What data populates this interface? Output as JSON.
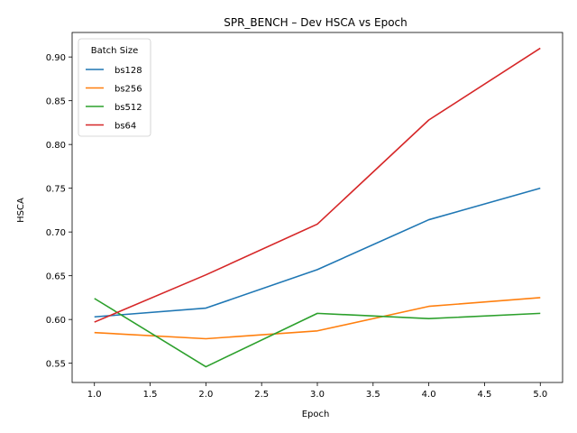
{
  "chart_data": {
    "type": "line",
    "title": "SPR_BENCH – Dev HSCA vs Epoch",
    "xlabel": "Epoch",
    "ylabel": "HSCA",
    "x": [
      1,
      2,
      3,
      4,
      5
    ],
    "xlim": [
      0.8,
      5.2
    ],
    "ylim": [
      0.528,
      0.928
    ],
    "xticks": [
      "1.0",
      "1.5",
      "2.0",
      "2.5",
      "3.0",
      "3.5",
      "4.0",
      "4.5",
      "5.0"
    ],
    "yticks": [
      "0.55",
      "0.60",
      "0.65",
      "0.70",
      "0.75",
      "0.80",
      "0.85",
      "0.90"
    ],
    "grid": false,
    "legend": {
      "title": "Batch Size",
      "placement": "top-left"
    },
    "series": [
      {
        "name": "bs128",
        "color": "#1f77b4",
        "values": [
          0.603,
          0.613,
          0.657,
          0.714,
          0.75
        ]
      },
      {
        "name": "bs256",
        "color": "#ff7f0e",
        "values": [
          0.585,
          0.578,
          0.587,
          0.615,
          0.625
        ]
      },
      {
        "name": "bs512",
        "color": "#2ca02c",
        "values": [
          0.624,
          0.546,
          0.607,
          0.601,
          0.607
        ]
      },
      {
        "name": "bs64",
        "color": "#d62728",
        "values": [
          0.597,
          0.651,
          0.709,
          0.828,
          0.91
        ]
      }
    ]
  }
}
